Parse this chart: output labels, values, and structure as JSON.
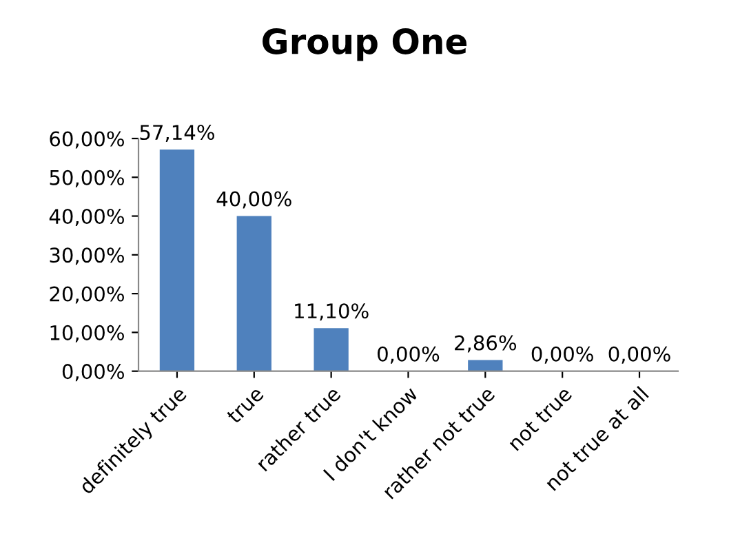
{
  "chart_data": {
    "type": "bar",
    "title": "Group One",
    "categories": [
      "definitely true",
      "true",
      "rather true",
      "I don't know",
      "rather not true",
      "not true",
      "not true at all"
    ],
    "values": [
      57.14,
      40.0,
      11.1,
      0.0,
      2.86,
      0.0,
      0.0
    ],
    "value_labels": [
      "57,14%",
      "40,00%",
      "11,10%",
      "0,00%",
      "2,86%",
      "0,00%",
      "0,00%"
    ],
    "color": "#4f81bd",
    "ylim": [
      0,
      60
    ],
    "yticks": [
      {
        "value": 0,
        "label": "0,00%"
      },
      {
        "value": 10,
        "label": "10,00%"
      },
      {
        "value": 20,
        "label": "20,00%"
      },
      {
        "value": 30,
        "label": "30,00%"
      },
      {
        "value": 40,
        "label": "40,00%"
      },
      {
        "value": 50,
        "label": "50,00%"
      },
      {
        "value": 60,
        "label": "60,00%"
      }
    ],
    "grid": false
  }
}
